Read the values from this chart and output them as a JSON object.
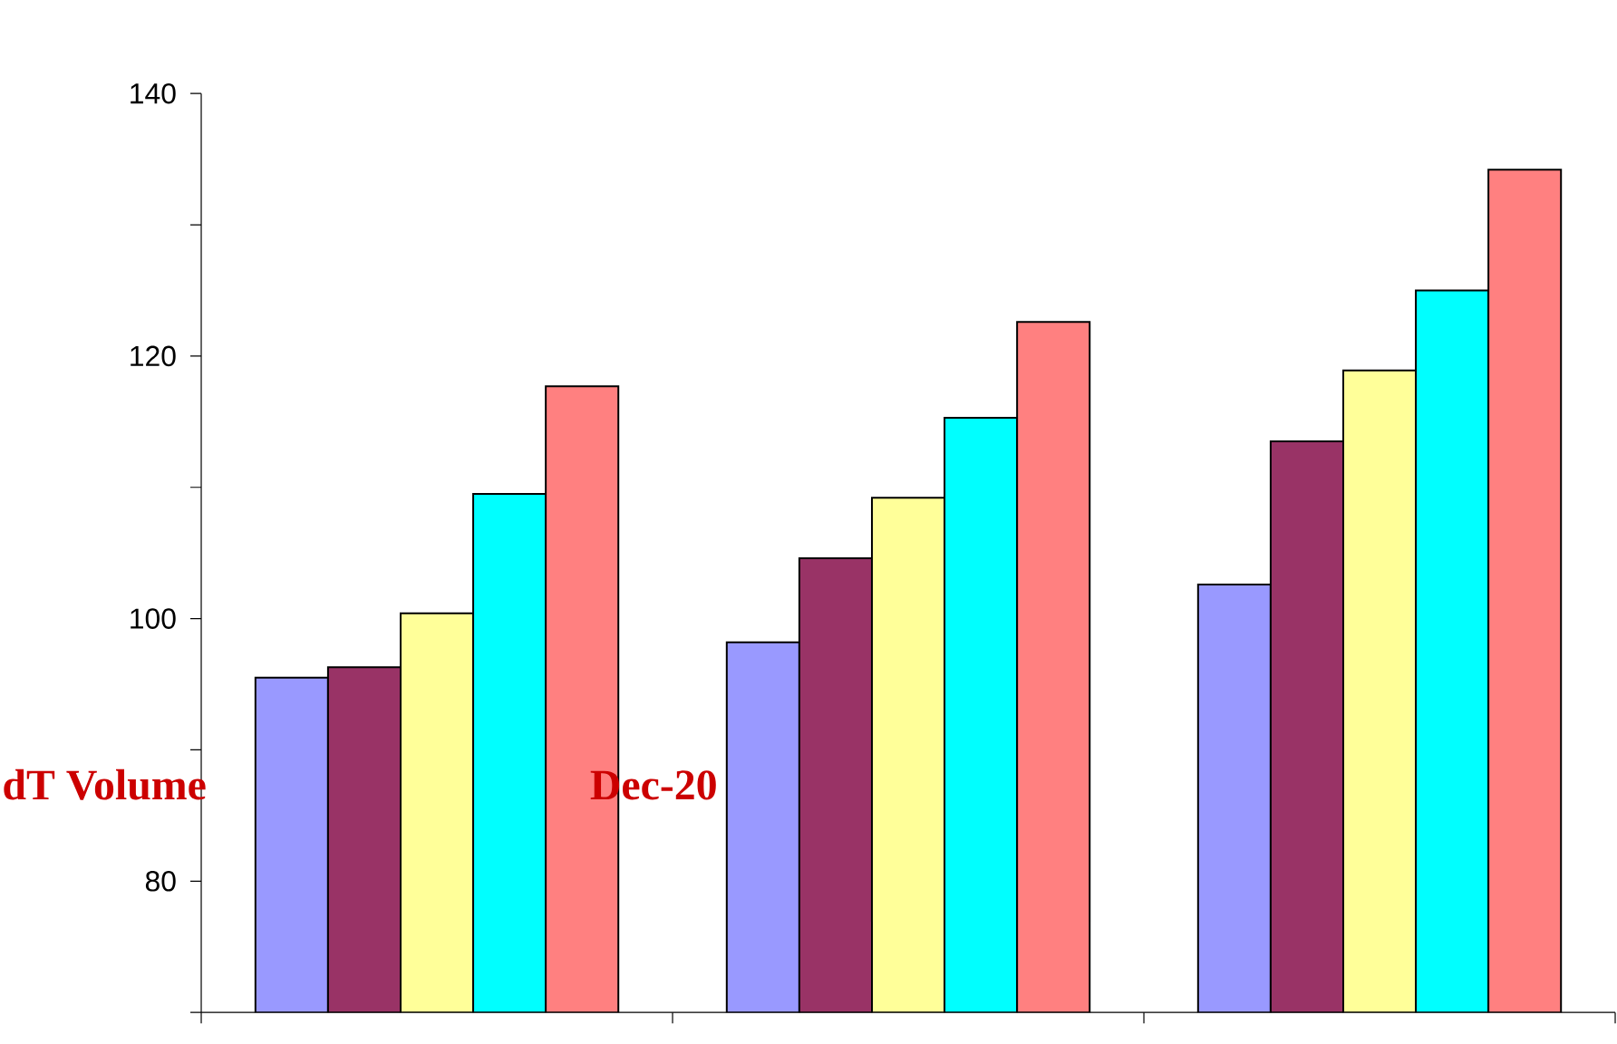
{
  "chart_data": {
    "type": "bar",
    "categories": [
      null,
      null,
      null
    ],
    "series": [
      {
        "color": "#9999ff",
        "values": [
          95.5,
          98.2,
          102.6
        ]
      },
      {
        "color": "#993366",
        "values": [
          96.3,
          104.6,
          113.5
        ]
      },
      {
        "color": "#ffff99",
        "values": [
          100.4,
          109.2,
          118.9
        ]
      },
      {
        "color": "#00ffff",
        "values": [
          109.5,
          115.3,
          125
        ]
      },
      {
        "color": "#ff8080",
        "values": [
          117.7,
          122.6,
          134.2
        ]
      }
    ],
    "ylim": [
      70,
      140
    ],
    "yticks": [
      {
        "value": 70,
        "label": null
      },
      80,
      {
        "value": 90,
        "label": null
      },
      100,
      {
        "value": 110,
        "label": null
      },
      120,
      {
        "value": 130,
        "label": null
      },
      140
    ],
    "annotations": [
      "dT Volume",
      "Dec-20"
    ],
    "tick_labels": "y",
    "grid": false
  }
}
